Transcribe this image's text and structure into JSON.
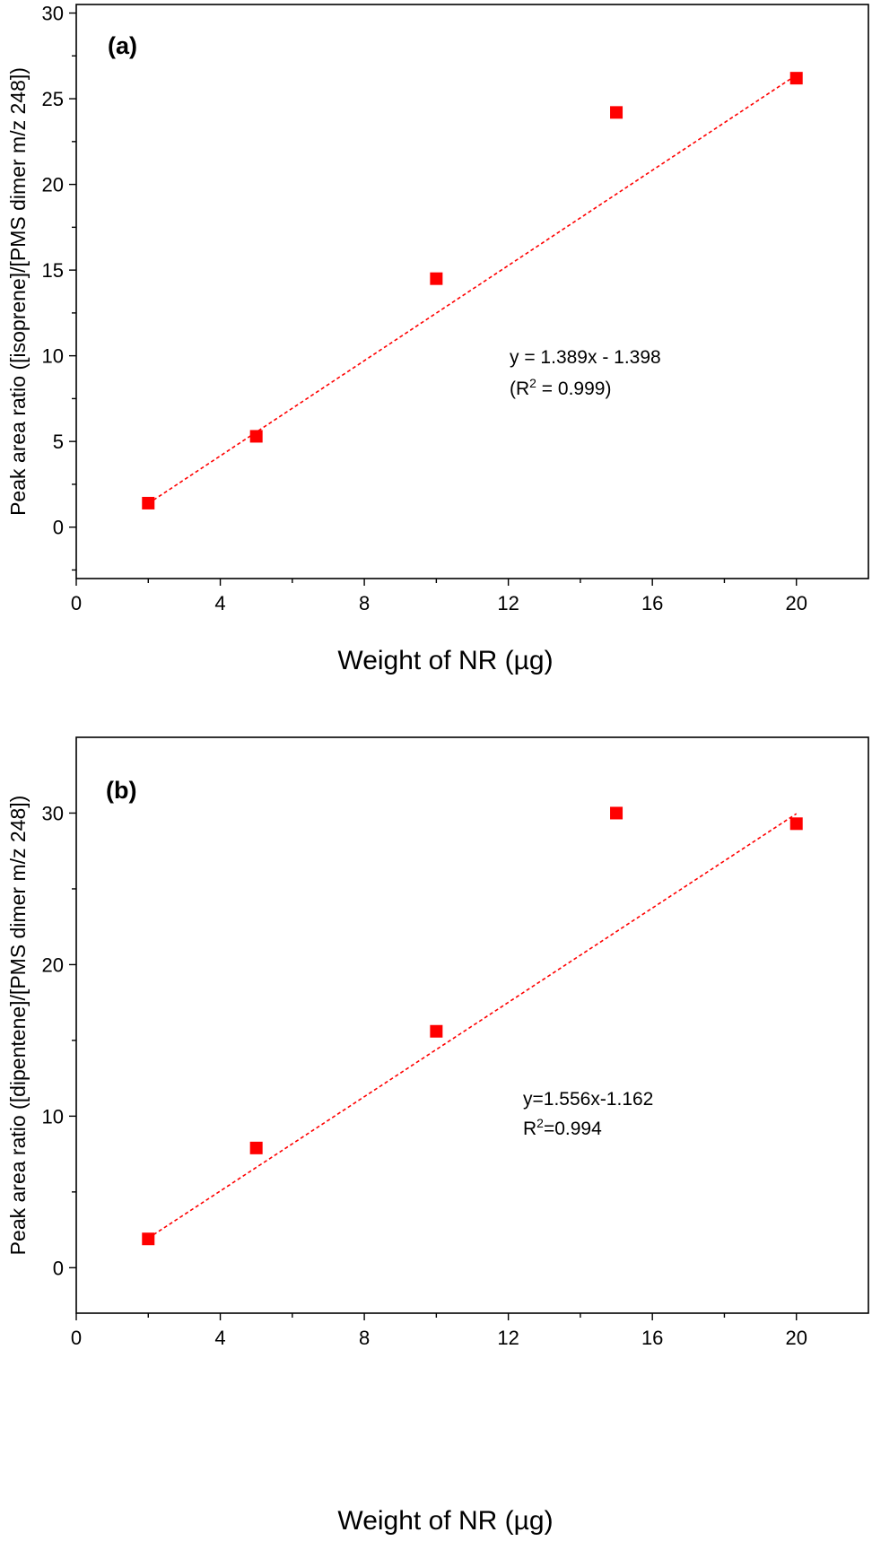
{
  "chart_data": [
    {
      "type": "scatter",
      "panel_label": "(a)",
      "xlabel": "Weight of NR (µg)",
      "ylabel": "Peak area ratio ([isoprene]/[PMS dimer m/z 248])",
      "xlim": [
        0,
        22
      ],
      "ylim": [
        -3,
        30.5
      ],
      "x_ticks": [
        0,
        4,
        8,
        12,
        16,
        20
      ],
      "y_ticks": [
        0,
        5,
        10,
        15,
        20,
        25,
        30
      ],
      "series": [
        {
          "x": [
            2,
            5,
            10,
            15,
            20
          ],
          "y": [
            1.4,
            5.3,
            14.5,
            24.2,
            26.2
          ]
        }
      ],
      "fit": {
        "slope": 1.389,
        "intercept": -1.398,
        "x_range": [
          2,
          20
        ]
      },
      "annotation": [
        "y = 1.389x - 1.398",
        "(R",
        "2",
        " = 0.999)"
      ],
      "marker_color": "#ff0000",
      "grid": false
    },
    {
      "type": "scatter",
      "panel_label": "(b)",
      "xlabel": "Weight of NR (µg)",
      "ylabel": "Peak area ratio ([dipentene]/[PMS dimer m/z 248])",
      "xlim": [
        0,
        22
      ],
      "ylim": [
        -3,
        35
      ],
      "x_ticks": [
        0,
        4,
        8,
        12,
        16,
        20
      ],
      "y_ticks": [
        0,
        10,
        20,
        30
      ],
      "series": [
        {
          "x": [
            2,
            5,
            10,
            15,
            20
          ],
          "y": [
            1.9,
            7.9,
            15.6,
            30.0,
            29.3
          ]
        }
      ],
      "fit": {
        "slope": 1.556,
        "intercept": -1.162,
        "x_range": [
          2,
          20
        ]
      },
      "annotation": [
        "y=1.556x-1.162",
        "R",
        "2",
        "=0.994"
      ],
      "marker_color": "#ff0000",
      "grid": false
    }
  ]
}
